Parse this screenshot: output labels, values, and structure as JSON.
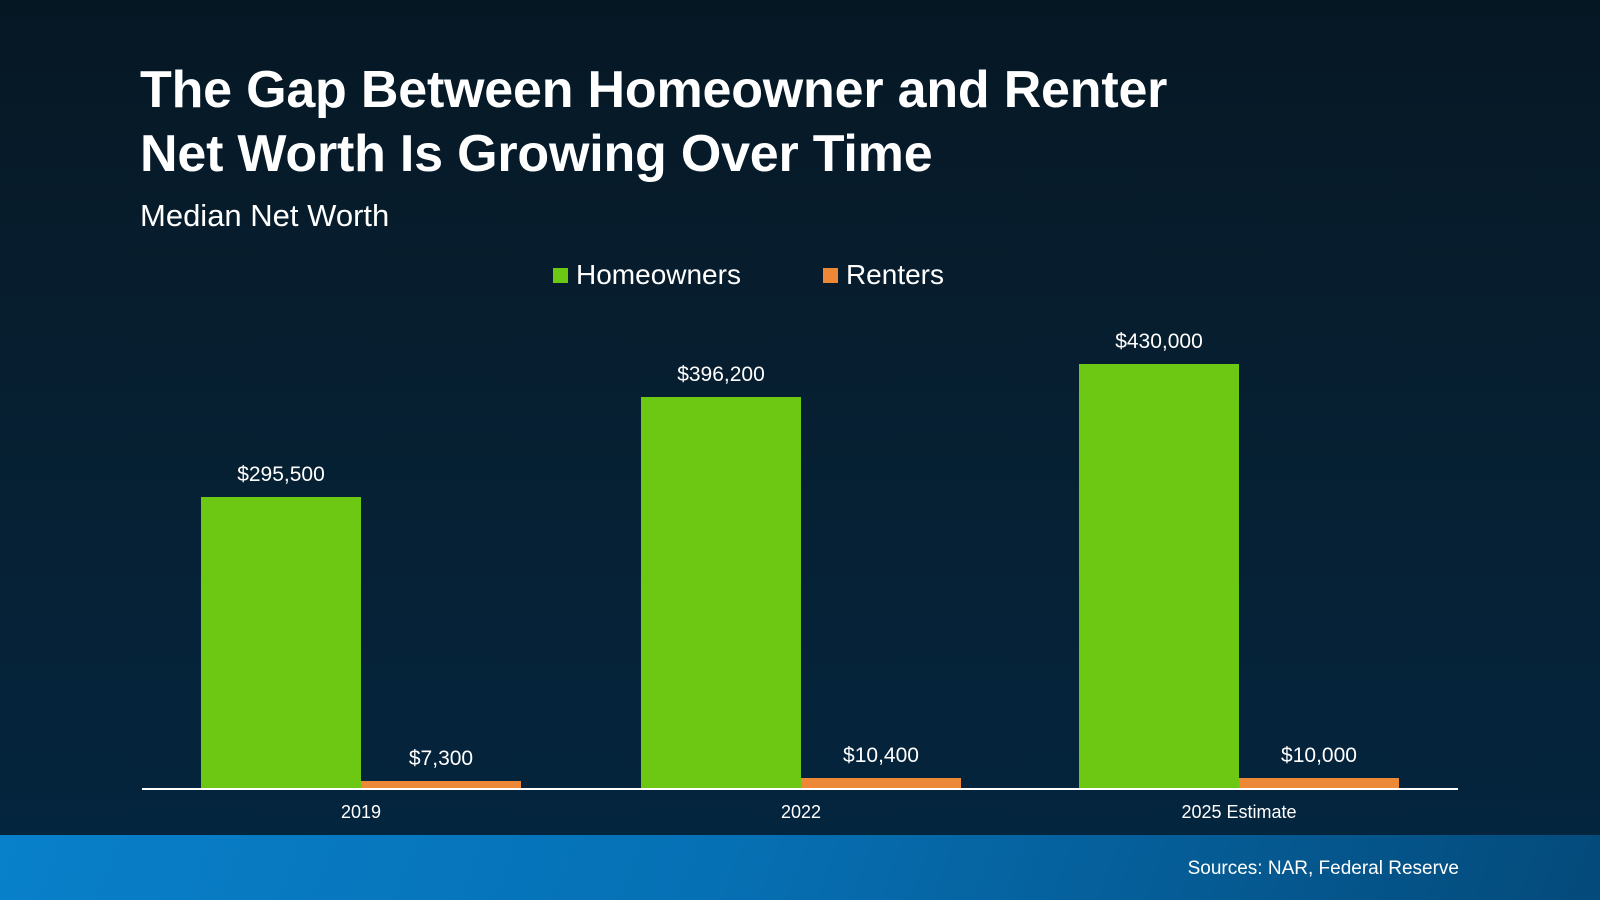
{
  "header": {
    "title_line1": "The Gap Between Homeowner and Renter",
    "title_line2": "Net Worth Is Growing Over Time",
    "subtitle": "Median Net Worth"
  },
  "legend": [
    {
      "label": "Homeowners",
      "color": "#6cc813"
    },
    {
      "label": "Renters",
      "color": "#ed8936"
    }
  ],
  "footer": {
    "source": "Sources: NAR, Federal Reserve"
  },
  "colors": {
    "homeowners": "#6cc813",
    "renters": "#ed8936",
    "background_top": "#061724",
    "background_bottom": "#042640",
    "footer": "#0880ca"
  },
  "chart_data": {
    "type": "bar",
    "title": "The Gap Between Homeowner and Renter Net Worth Is Growing Over Time",
    "subtitle": "Median Net Worth",
    "categories": [
      "2019",
      "2022",
      "2025 Estimate"
    ],
    "series": [
      {
        "name": "Homeowners",
        "values": [
          295500,
          396200,
          430000
        ],
        "labels": [
          "$295,500",
          "$396,200",
          "$430,000"
        ]
      },
      {
        "name": "Renters",
        "values": [
          7300,
          10400,
          10000
        ],
        "labels": [
          "$7,300",
          "$10,400",
          "$10,000"
        ]
      }
    ],
    "xlabel": "",
    "ylabel": "",
    "ylim": [
      0,
      430000
    ],
    "grid": false,
    "legend_position": "top",
    "annotations": [
      "Sources: NAR, Federal Reserve"
    ]
  }
}
